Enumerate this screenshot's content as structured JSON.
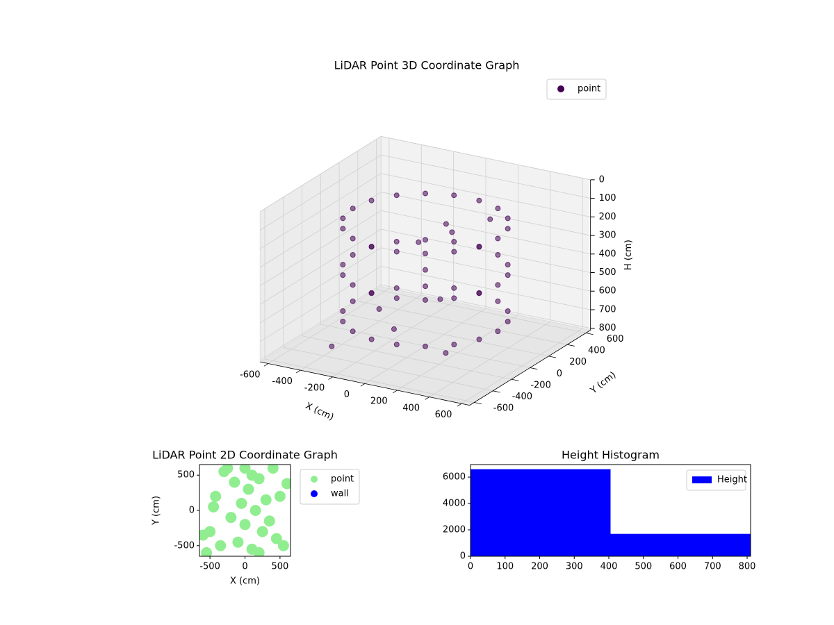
{
  "chart_data": [
    {
      "type": "scatter3d",
      "title": "LiDAR Point 3D Coordinate Graph",
      "xlabel": "X (cm)",
      "ylabel": "Y (cm)",
      "zlabel": "H (cm)",
      "xlim": [
        -650,
        650
      ],
      "ylim": [
        -650,
        650
      ],
      "zlim": [
        810,
        0
      ],
      "xticks": [
        -600,
        -400,
        -200,
        0,
        200,
        400,
        600
      ],
      "yticks": [
        -600,
        -400,
        -200,
        0,
        200,
        400,
        600
      ],
      "zticks": [
        0,
        100,
        200,
        300,
        400,
        500,
        600,
        700,
        800
      ],
      "grid": true,
      "legend": "upper right",
      "series": [
        {
          "name": "point",
          "color": "#440154",
          "x": [
            450,
            423,
            345,
            225,
            78,
            -78,
            -225,
            -345,
            -423,
            -450,
            -423,
            -345,
            -225,
            -78,
            78,
            225,
            345,
            423,
            450,
            423,
            345,
            225,
            78,
            -78,
            -225,
            -345,
            -423,
            -450,
            -423,
            -345,
            -225,
            -78,
            78,
            225,
            345,
            423,
            450,
            423,
            345,
            225,
            78,
            -78,
            -225,
            -345,
            -423,
            -450,
            -423,
            -345,
            -225,
            -78,
            78,
            225,
            345,
            423,
            -100,
            50,
            150,
            -200,
            0,
            300,
            -350,
            200,
            -50,
            100
          ],
          "y": [
            0,
            154,
            289,
            390,
            443,
            443,
            390,
            289,
            154,
            0,
            -154,
            -289,
            -390,
            -443,
            -443,
            -390,
            -289,
            -154,
            0,
            154,
            289,
            390,
            443,
            443,
            390,
            289,
            154,
            0,
            -154,
            -289,
            -390,
            -443,
            -443,
            -390,
            -289,
            -154,
            0,
            154,
            289,
            390,
            443,
            443,
            390,
            289,
            154,
            0,
            -154,
            -289,
            -390,
            -443,
            -443,
            -390,
            -289,
            -154,
            100,
            200,
            -100,
            -150,
            0,
            -300,
            -400,
            350,
            -250,
            50
          ],
          "z": [
            150,
            150,
            150,
            150,
            150,
            150,
            150,
            150,
            150,
            150,
            150,
            150,
            150,
            150,
            150,
            150,
            150,
            150,
            400,
            400,
            400,
            400,
            400,
            400,
            400,
            400,
            400,
            400,
            400,
            400,
            400,
            400,
            400,
            400,
            400,
            400,
            650,
            650,
            650,
            650,
            650,
            650,
            650,
            650,
            650,
            650,
            650,
            650,
            650,
            650,
            650,
            650,
            650,
            650,
            300,
            250,
            500,
            600,
            400,
            700,
            750,
            200,
            650,
            150
          ]
        }
      ]
    },
    {
      "type": "scatter",
      "title": "LiDAR Point 2D Coordinate Graph",
      "xlabel": "X (cm)",
      "ylabel": "Y (cm)",
      "xlim": [
        -650,
        650
      ],
      "ylim": [
        -650,
        650
      ],
      "xticks": [
        -500,
        0,
        500
      ],
      "yticks": [
        -500,
        0,
        500
      ],
      "legend": "outside",
      "series": [
        {
          "name": "point",
          "color": "#90ee90",
          "x": [
            -500,
            -420,
            -300,
            -250,
            -150,
            -100,
            -50,
            0,
            50,
            100,
            150,
            200,
            250,
            300,
            400,
            450,
            550,
            600,
            -600,
            -550,
            -200,
            100,
            350,
            -350,
            0,
            200,
            -450,
            500
          ],
          "y": [
            -300,
            200,
            550,
            600,
            400,
            -450,
            100,
            -200,
            300,
            -550,
            0,
            450,
            -300,
            150,
            600,
            -400,
            -500,
            380,
            -350,
            -600,
            -100,
            500,
            -150,
            -500,
            600,
            -600,
            50,
            200
          ]
        },
        {
          "name": "wall",
          "color": "#0000ff",
          "x": [],
          "y": []
        }
      ]
    },
    {
      "type": "histogram",
      "title": "Height Histogram",
      "bins": [
        0,
        405,
        810
      ],
      "counts": [
        6600,
        1700
      ],
      "series_name": "Height",
      "color": "#0000ff",
      "xlim": [
        0,
        810
      ],
      "ylim": [
        0,
        6950
      ],
      "xticks": [
        0,
        100,
        200,
        300,
        400,
        500,
        600,
        700,
        800
      ],
      "yticks": [
        0,
        2000,
        4000,
        6000
      ],
      "legend": "upper right"
    }
  ]
}
